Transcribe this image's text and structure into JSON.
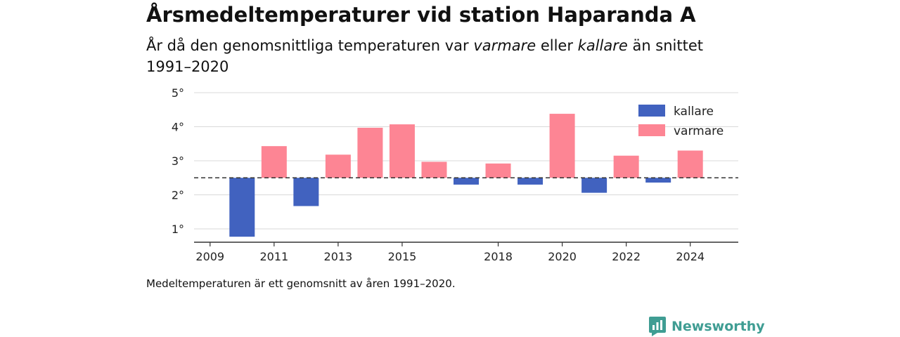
{
  "title": "Årsmedeltemperaturer vid station Haparanda A",
  "subtitle": {
    "part1": "År då den genomsnittliga temperaturen var ",
    "em1": "varmare",
    "part2": " eller ",
    "em2": "kallare",
    "part3": " än snittet 1991–2020"
  },
  "footnote": "Medeltemperaturen är ett genomsnitt av åren 1991–2020.",
  "brand": "Newsworthy",
  "colors": {
    "kallare": "#4162bf",
    "varmare": "#fd8594",
    "grid": "#d9d9d9",
    "axis": "#333333"
  },
  "chart_data": {
    "type": "bar",
    "baseline": 2.5,
    "ylim": [
      0.6,
      5.0
    ],
    "yticks": [
      1,
      2,
      3,
      4,
      5
    ],
    "ytick_suffix": "°",
    "xlim": [
      2008.5,
      2025.5
    ],
    "xticks": [
      "2009",
      "2011",
      "2013",
      "2015",
      "2018",
      "2020",
      "2022",
      "2024"
    ],
    "legend": {
      "position": "top-right",
      "entries": [
        "kallare",
        "varmare"
      ]
    },
    "grid": true,
    "years": [
      2010,
      2011,
      2012,
      2013,
      2014,
      2015,
      2016,
      2017,
      2018,
      2019,
      2020,
      2021,
      2022,
      2023,
      2024
    ],
    "values": [
      0.77,
      3.43,
      1.67,
      3.18,
      3.97,
      4.07,
      2.97,
      2.3,
      2.92,
      2.3,
      4.38,
      2.06,
      3.15,
      2.36,
      3.3
    ]
  }
}
